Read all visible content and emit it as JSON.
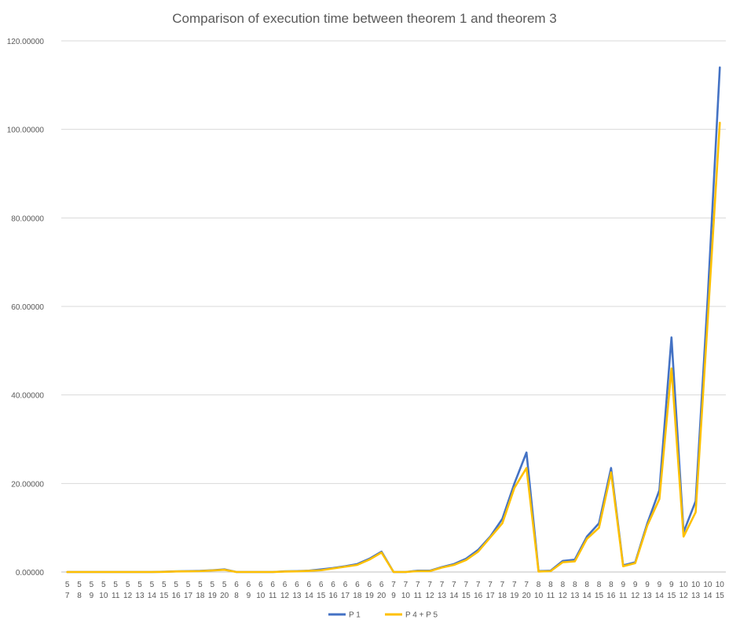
{
  "chart_data": {
    "type": "line",
    "title": "Comparison of execution time between theorem 1 and theorem 3",
    "xlabel": "",
    "ylabel": "",
    "ylim": [
      0,
      120
    ],
    "y_ticks": [
      "0.00000",
      "20.00000",
      "40.00000",
      "60.00000",
      "80.00000",
      "100.00000",
      "120.00000"
    ],
    "y_tick_values": [
      0,
      20,
      40,
      60,
      80,
      100,
      120
    ],
    "grid": "horizontal",
    "legend_position": "bottom",
    "categories": [
      {
        "a": "5",
        "b": "7"
      },
      {
        "a": "5",
        "b": "8"
      },
      {
        "a": "5",
        "b": "9"
      },
      {
        "a": "5",
        "b": "10"
      },
      {
        "a": "5",
        "b": "11"
      },
      {
        "a": "5",
        "b": "12"
      },
      {
        "a": "5",
        "b": "13"
      },
      {
        "a": "5",
        "b": "14"
      },
      {
        "a": "5",
        "b": "15"
      },
      {
        "a": "5",
        "b": "16"
      },
      {
        "a": "5",
        "b": "17"
      },
      {
        "a": "5",
        "b": "18"
      },
      {
        "a": "5",
        "b": "19"
      },
      {
        "a": "5",
        "b": "20"
      },
      {
        "a": "6",
        "b": "8"
      },
      {
        "a": "6",
        "b": "9"
      },
      {
        "a": "6",
        "b": "10"
      },
      {
        "a": "6",
        "b": "11"
      },
      {
        "a": "6",
        "b": "12"
      },
      {
        "a": "6",
        "b": "13"
      },
      {
        "a": "6",
        "b": "14"
      },
      {
        "a": "6",
        "b": "15"
      },
      {
        "a": "6",
        "b": "16"
      },
      {
        "a": "6",
        "b": "17"
      },
      {
        "a": "6",
        "b": "18"
      },
      {
        "a": "6",
        "b": "19"
      },
      {
        "a": "6",
        "b": "20"
      },
      {
        "a": "7",
        "b": "9"
      },
      {
        "a": "7",
        "b": "10"
      },
      {
        "a": "7",
        "b": "11"
      },
      {
        "a": "7",
        "b": "12"
      },
      {
        "a": "7",
        "b": "13"
      },
      {
        "a": "7",
        "b": "14"
      },
      {
        "a": "7",
        "b": "15"
      },
      {
        "a": "7",
        "b": "16"
      },
      {
        "a": "7",
        "b": "17"
      },
      {
        "a": "7",
        "b": "18"
      },
      {
        "a": "7",
        "b": "19"
      },
      {
        "a": "7",
        "b": "20"
      },
      {
        "a": "8",
        "b": "10"
      },
      {
        "a": "8",
        "b": "11"
      },
      {
        "a": "8",
        "b": "12"
      },
      {
        "a": "8",
        "b": "13"
      },
      {
        "a": "8",
        "b": "14"
      },
      {
        "a": "8",
        "b": "15"
      },
      {
        "a": "8",
        "b": "16"
      },
      {
        "a": "9",
        "b": "11"
      },
      {
        "a": "9",
        "b": "12"
      },
      {
        "a": "9",
        "b": "13"
      },
      {
        "a": "9",
        "b": "14"
      },
      {
        "a": "9",
        "b": "15"
      },
      {
        "a": "10",
        "b": "12"
      },
      {
        "a": "10",
        "b": "13"
      },
      {
        "a": "10",
        "b": "14"
      },
      {
        "a": "10",
        "b": "15"
      }
    ],
    "series": [
      {
        "name": "P 1",
        "color": "#4472c4",
        "values": [
          0,
          0,
          0,
          0,
          0,
          0,
          0,
          0,
          0.05,
          0.15,
          0.2,
          0.25,
          0.4,
          0.6,
          0,
          0,
          0,
          0,
          0.15,
          0.2,
          0.3,
          0.6,
          0.9,
          1.3,
          1.8,
          3,
          4.6,
          0,
          0,
          0.3,
          0.3,
          1.1,
          1.8,
          3,
          5,
          8,
          12,
          20,
          27,
          0.2,
          0.3,
          2.5,
          2.8,
          8,
          11,
          23.5,
          1.5,
          2.2,
          11,
          18.5,
          53,
          9,
          16,
          62,
          114
        ]
      },
      {
        "name": "P 4 + P 5",
        "color": "#ffc000",
        "values": [
          0,
          0,
          0,
          0,
          0,
          0,
          0,
          0,
          0.03,
          0.12,
          0.15,
          0.2,
          0.35,
          0.5,
          0,
          0,
          0,
          0,
          0.1,
          0.15,
          0.25,
          0.4,
          0.8,
          1.2,
          1.6,
          2.8,
          4.4,
          0,
          0,
          0.2,
          0.2,
          1,
          1.6,
          2.7,
          4.6,
          7.8,
          11,
          19,
          23.5,
          0.1,
          0.2,
          2.2,
          2.4,
          7.5,
          10,
          22.5,
          1.3,
          2,
          10.5,
          16.5,
          46,
          8,
          13.5,
          57,
          101.5
        ]
      }
    ]
  }
}
